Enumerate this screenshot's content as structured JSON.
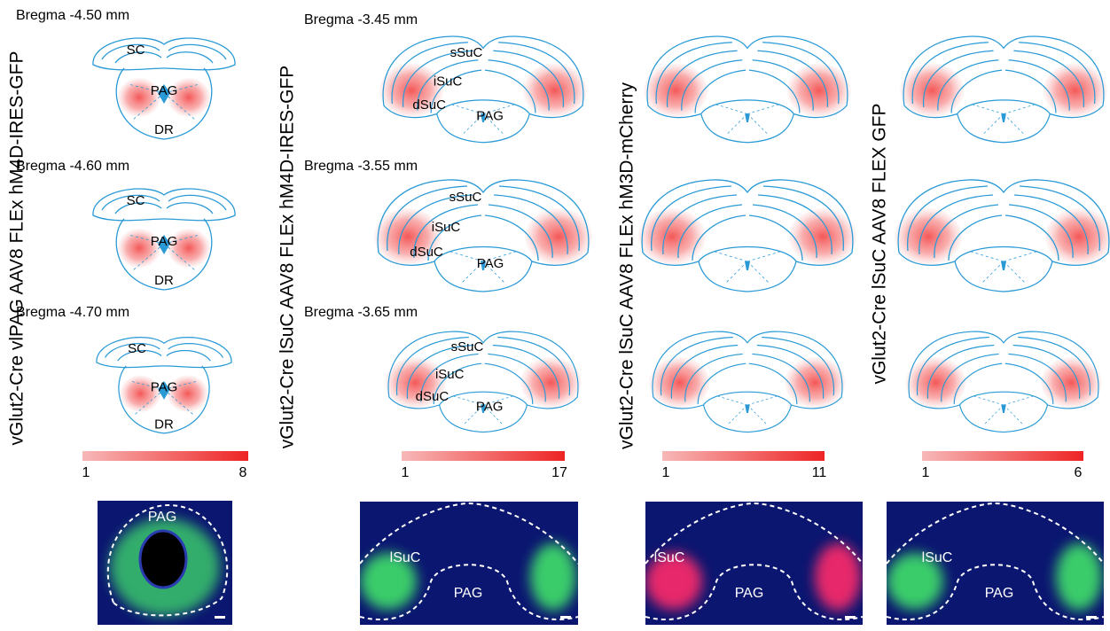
{
  "columns": [
    {
      "vertical_label": "vGlut2-Cre vlPAG AAV8 FLEx hM4D-IRES-GFP",
      "sections": [
        {
          "bregma": "Bregma -4.50 mm",
          "labels": [
            "SC",
            "PAG",
            "DR"
          ]
        },
        {
          "bregma": "Bregma -4.60 mm",
          "labels": [
            "SC",
            "PAG",
            "DR"
          ]
        },
        {
          "bregma": "Bregma -4.70 mm",
          "labels": [
            "SC",
            "PAG",
            "DR"
          ]
        }
      ],
      "colorbar": {
        "min": 1,
        "max": 8
      },
      "image_labels": [
        "PAG"
      ]
    },
    {
      "vertical_label": "vGlut2-Cre lSuC AAV8 FLEx hM4D-IRES-GFP",
      "sections": [
        {
          "bregma": "Bregma -3.45 mm",
          "labels": [
            "sSuC",
            "iSuC",
            "dSuC",
            "PAG"
          ]
        },
        {
          "bregma": "Bregma -3.55 mm",
          "labels": [
            "sSuC",
            "iSuC",
            "dSuC",
            "PAG"
          ]
        },
        {
          "bregma": "Bregma -3.65 mm",
          "labels": [
            "sSuC",
            "iSuC",
            "dSuC",
            "PAG"
          ]
        }
      ],
      "colorbar": {
        "min": 1,
        "max": 17
      },
      "image_labels": [
        "lSuC",
        "PAG"
      ]
    },
    {
      "vertical_label": "vGlut2-Cre lSuC AAV8 FLEx hM3D-mCherry",
      "colorbar": {
        "min": 1,
        "max": 11
      },
      "image_labels": [
        "lSuC",
        "PAG"
      ]
    },
    {
      "vertical_label": "vGlut2-Cre lSuC AAV8 FLEX GFP",
      "colorbar": {
        "min": 1,
        "max": 6
      },
      "image_labels": [
        "lSuC",
        "PAG"
      ]
    }
  ]
}
